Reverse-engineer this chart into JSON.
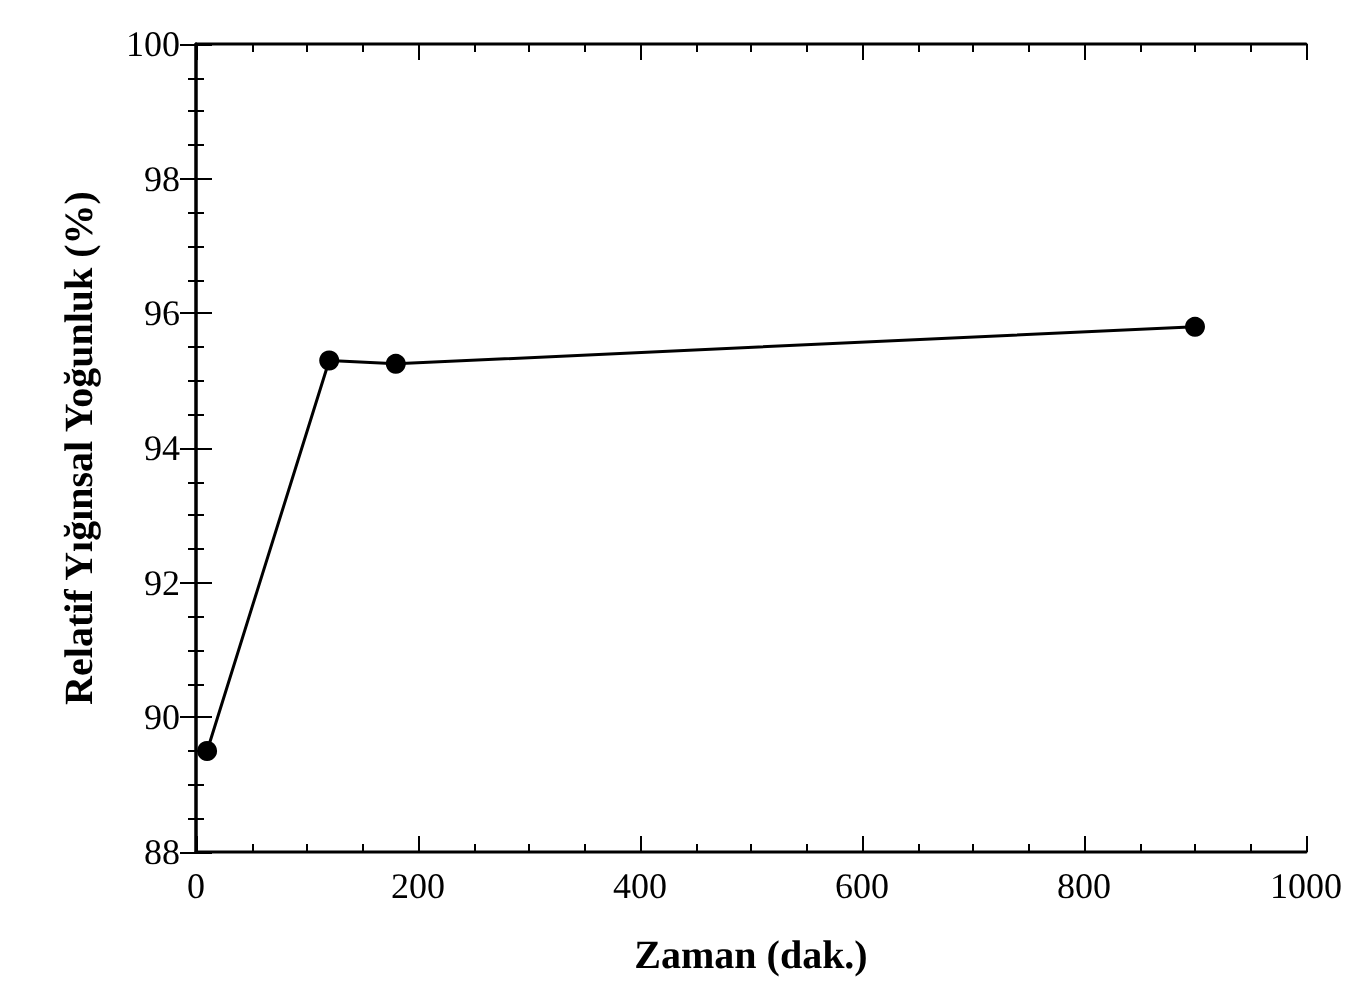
{
  "chart_data": {
    "type": "line",
    "xlabel": "Zaman (dak.)",
    "ylabel": "Relatif Yığınsal Yoğunluk (%)",
    "x": [
      10,
      120,
      180,
      900
    ],
    "series": [
      {
        "color": "#000000",
        "values": [
          89.5,
          95.3,
          95.25,
          95.8
        ]
      }
    ],
    "xlim": [
      0,
      1000
    ],
    "xticks": [
      0,
      200,
      400,
      600,
      800,
      1000
    ],
    "ylim": [
      88,
      100
    ],
    "yticks": [
      88,
      90,
      92,
      94,
      96,
      98,
      100
    ],
    "grid": false,
    "marker": "circle",
    "line_style": "solid"
  }
}
